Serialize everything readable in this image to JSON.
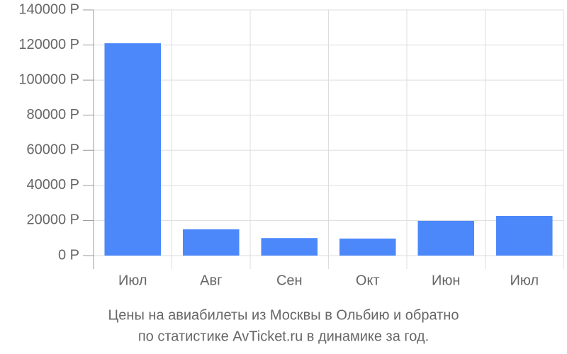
{
  "chart_data": {
    "type": "bar",
    "title": "Цены на авиабилеты из Москвы в Ольбию и обратно",
    "subtitle": "по статистике AvTicket.ru в динамике за год.",
    "categories": [
      "Июл",
      "Авг",
      "Сен",
      "Окт",
      "Июн",
      "Июл"
    ],
    "values": [
      121000,
      15000,
      10000,
      9700,
      19800,
      22600
    ],
    "color": "#4d88fb",
    "ylim": [
      0,
      140000
    ],
    "yticks": [
      {
        "value": 0,
        "label": "0 Р"
      },
      {
        "value": 20000,
        "label": "20000 Р"
      },
      {
        "value": 40000,
        "label": "40000 Р"
      },
      {
        "value": 60000,
        "label": "60000 Р"
      },
      {
        "value": 80000,
        "label": "80000 Р"
      },
      {
        "value": 100000,
        "label": "100000 Р"
      },
      {
        "value": 120000,
        "label": "120000 Р"
      },
      {
        "value": 140000,
        "label": "140000 Р"
      }
    ],
    "grid": true
  }
}
